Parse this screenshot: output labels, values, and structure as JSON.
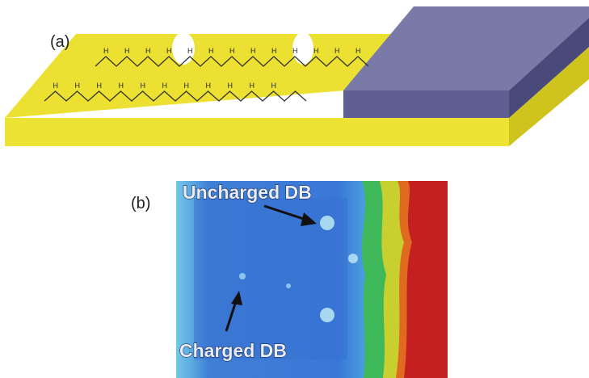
{
  "panel_a": {
    "label": "(a)",
    "h_labels": [
      "H",
      "H",
      "H",
      "H",
      "H",
      "H",
      "H",
      "H",
      "H",
      "H",
      "H",
      "H",
      "H",
      "H",
      "H",
      "H",
      "H",
      "H",
      "H",
      "H",
      "H",
      "H",
      "H",
      "H"
    ]
  },
  "panel_b": {
    "label": "(b)",
    "annotations": [
      "Uncharged DB",
      "Charged DB"
    ]
  }
}
